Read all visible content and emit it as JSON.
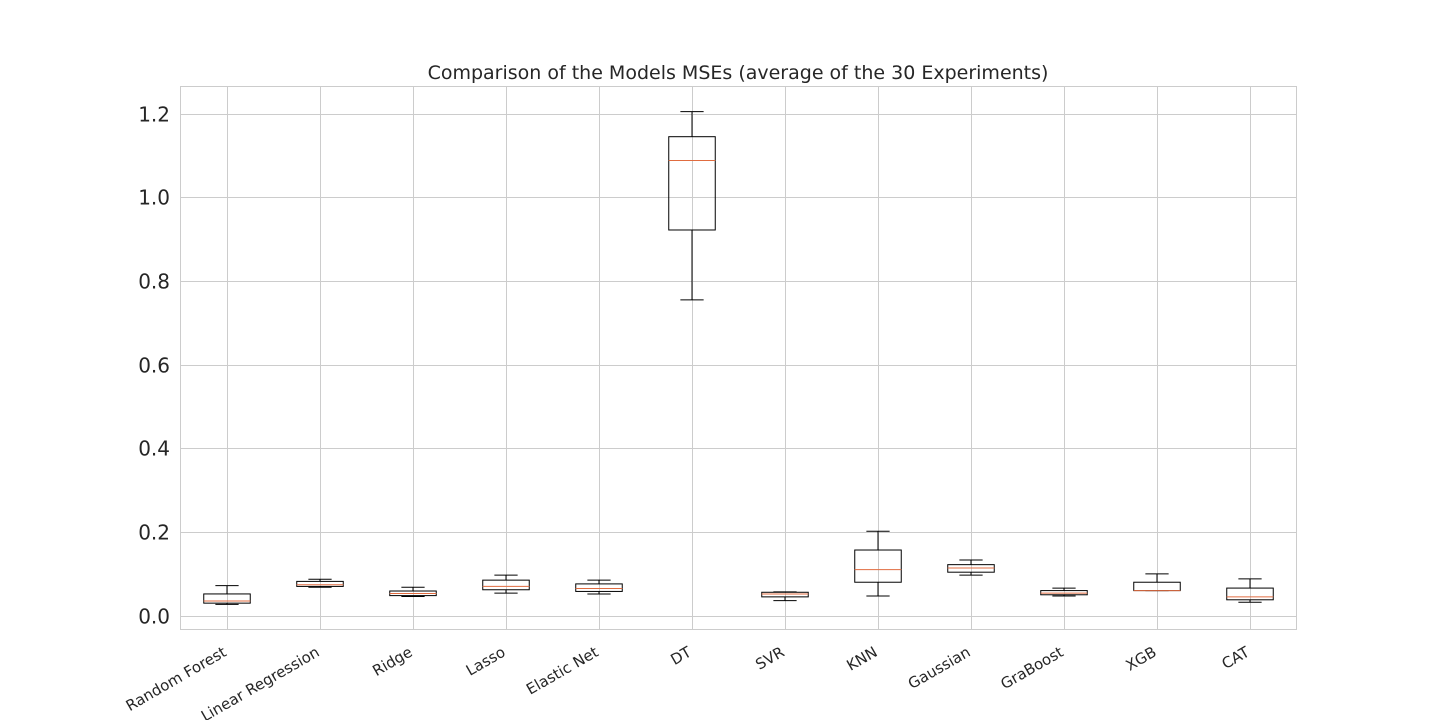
{
  "chart_data": {
    "type": "box",
    "title": "Comparison of the Models MSEs (average of the 30 Experiments)",
    "xlabel": "",
    "ylabel": "",
    "ylim": [
      -0.033,
      1.265
    ],
    "yticks": [
      0.0,
      0.2,
      0.4,
      0.6,
      0.8,
      1.0,
      1.2
    ],
    "grid": true,
    "median_color": "#e06c40",
    "box_color": "#000000",
    "categories": [
      "Random Forest",
      "Linear Regression",
      "Ridge",
      "Lasso",
      "Elastic Net",
      "DT",
      "SVR",
      "KNN",
      "Gaussian",
      "GraBoost",
      "XGB",
      "CAT"
    ],
    "boxes": [
      {
        "label": "Random Forest",
        "whislo": 0.027,
        "q1": 0.03,
        "med": 0.035,
        "q3": 0.052,
        "whishi": 0.072
      },
      {
        "label": "Linear Regression",
        "whislo": 0.068,
        "q1": 0.07,
        "med": 0.074,
        "q3": 0.082,
        "whishi": 0.087
      },
      {
        "label": "Ridge",
        "whislo": 0.046,
        "q1": 0.048,
        "med": 0.053,
        "q3": 0.059,
        "whishi": 0.068
      },
      {
        "label": "Lasso",
        "whislo": 0.054,
        "q1": 0.062,
        "med": 0.07,
        "q3": 0.085,
        "whishi": 0.097
      },
      {
        "label": "Elastic Net",
        "whislo": 0.052,
        "q1": 0.058,
        "med": 0.065,
        "q3": 0.076,
        "whishi": 0.085
      },
      {
        "label": "DT",
        "whislo": 0.755,
        "q1": 0.922,
        "med": 1.088,
        "q3": 1.145,
        "whishi": 1.205
      },
      {
        "label": "SVR",
        "whislo": 0.036,
        "q1": 0.045,
        "med": 0.052,
        "q3": 0.056,
        "whishi": 0.057
      },
      {
        "label": "KNN",
        "whislo": 0.047,
        "q1": 0.08,
        "med": 0.11,
        "q3": 0.157,
        "whishi": 0.202
      },
      {
        "label": "Gaussian",
        "whislo": 0.097,
        "q1": 0.104,
        "med": 0.114,
        "q3": 0.122,
        "whishi": 0.133
      },
      {
        "label": "GraBoost",
        "whislo": 0.047,
        "q1": 0.05,
        "med": 0.054,
        "q3": 0.06,
        "whishi": 0.066
      },
      {
        "label": "XGB",
        "whislo": 0.06,
        "q1": 0.06,
        "med": 0.06,
        "q3": 0.08,
        "whishi": 0.1
      },
      {
        "label": "CAT",
        "whislo": 0.032,
        "q1": 0.038,
        "med": 0.045,
        "q3": 0.066,
        "whishi": 0.088
      }
    ]
  }
}
